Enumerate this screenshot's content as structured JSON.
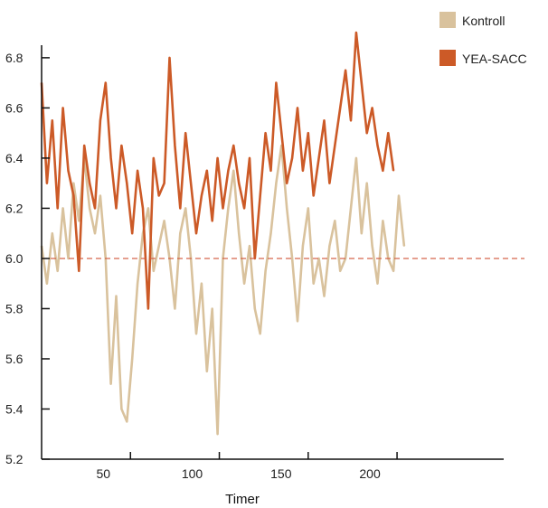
{
  "chart_data": {
    "type": "line",
    "title": "",
    "xlabel": "Timer",
    "ylabel": "",
    "xlim": [
      0,
      260
    ],
    "ylim": [
      5.2,
      6.85
    ],
    "x_ticks": [
      {
        "value": 50,
        "label": "50"
      },
      {
        "value": 100,
        "label": "100"
      },
      {
        "value": 150,
        "label": "150"
      },
      {
        "value": 200,
        "label": "200"
      }
    ],
    "y_ticks": [
      {
        "value": 5.2,
        "label": "5.2"
      },
      {
        "value": 5.4,
        "label": "5.4"
      },
      {
        "value": 5.6,
        "label": "5.6"
      },
      {
        "value": 5.8,
        "label": "5.8"
      },
      {
        "value": 6.0,
        "label": "6.0"
      },
      {
        "value": 6.2,
        "label": "6.2"
      },
      {
        "value": 6.4,
        "label": "6.4"
      },
      {
        "value": 6.6,
        "label": "6.6"
      },
      {
        "value": 6.8,
        "label": "6.8"
      }
    ],
    "reference_line": {
      "y": 6.0,
      "color": "#d2553a"
    },
    "legend_position": "top-right",
    "grid": false,
    "series": [
      {
        "name": "Kontroll",
        "color": "#d9c29d",
        "x": [
          0,
          3,
          6,
          9,
          12,
          15,
          18,
          21,
          24,
          27,
          30,
          33,
          36,
          39,
          42,
          45,
          48,
          51,
          54,
          57,
          60,
          63,
          66,
          69,
          72,
          75,
          78,
          81,
          84,
          87,
          90,
          93,
          96,
          99,
          102,
          105,
          108,
          111,
          114,
          117,
          120,
          123,
          126,
          129,
          132,
          135,
          138,
          141,
          144,
          147,
          150,
          153,
          156,
          159,
          162,
          165,
          168,
          171,
          174,
          177,
          180,
          183,
          186,
          189,
          192,
          195,
          198,
          201,
          204
        ],
        "values": [
          6.05,
          5.9,
          6.1,
          5.95,
          6.2,
          6.0,
          6.3,
          6.15,
          6.4,
          6.2,
          6.1,
          6.25,
          6.0,
          5.5,
          5.85,
          5.4,
          5.35,
          5.6,
          5.9,
          6.1,
          6.2,
          5.95,
          6.05,
          6.15,
          6.0,
          5.8,
          6.1,
          6.2,
          6.0,
          5.7,
          5.9,
          5.55,
          5.8,
          5.3,
          6.0,
          6.2,
          6.35,
          6.1,
          5.9,
          6.05,
          5.8,
          5.7,
          5.95,
          6.1,
          6.3,
          6.45,
          6.2,
          6.0,
          5.75,
          6.05,
          6.2,
          5.9,
          6.0,
          5.85,
          6.05,
          6.15,
          5.95,
          6.0,
          6.2,
          6.4,
          6.1,
          6.3,
          6.05,
          5.9,
          6.15,
          6.0,
          5.95,
          6.25,
          6.05
        ]
      },
      {
        "name": "YEA-SACC",
        "color": "#cc5a27",
        "x": [
          0,
          3,
          6,
          9,
          12,
          15,
          18,
          21,
          24,
          27,
          30,
          33,
          36,
          39,
          42,
          45,
          48,
          51,
          54,
          57,
          60,
          63,
          66,
          69,
          72,
          75,
          78,
          81,
          84,
          87,
          90,
          93,
          96,
          99,
          102,
          105,
          108,
          111,
          114,
          117,
          120,
          123,
          126,
          129,
          132,
          135,
          138,
          141,
          144,
          147,
          150,
          153,
          156,
          159,
          162,
          165,
          168,
          171,
          174,
          177,
          180,
          183,
          186,
          189,
          192,
          195,
          198
        ],
        "values": [
          6.7,
          6.3,
          6.55,
          6.2,
          6.6,
          6.35,
          6.25,
          5.95,
          6.45,
          6.3,
          6.2,
          6.55,
          6.7,
          6.4,
          6.2,
          6.45,
          6.3,
          6.1,
          6.35,
          6.2,
          5.8,
          6.4,
          6.25,
          6.3,
          6.8,
          6.45,
          6.2,
          6.5,
          6.3,
          6.1,
          6.25,
          6.35,
          6.15,
          6.4,
          6.2,
          6.35,
          6.45,
          6.3,
          6.2,
          6.4,
          6.0,
          6.25,
          6.5,
          6.35,
          6.7,
          6.5,
          6.3,
          6.4,
          6.6,
          6.35,
          6.5,
          6.25,
          6.4,
          6.55,
          6.3,
          6.45,
          6.6,
          6.75,
          6.55,
          6.9,
          6.7,
          6.5,
          6.6,
          6.45,
          6.35,
          6.5,
          6.35
        ]
      }
    ]
  }
}
